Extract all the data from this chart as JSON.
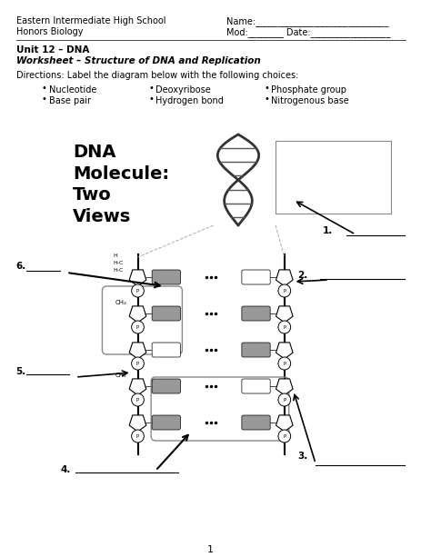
{
  "title_left1": "Eastern Intermediate High School",
  "title_left2": "Honors Biology",
  "name_line": "Name:______________________________",
  "mod_date_line": "Mod:________ Date:__________________",
  "unit_header": "Unit 12 – DNA",
  "worksheet_title": "Worksheet – Structure of DNA and Replication",
  "directions": "Directions: Label the diagram below with the following choices:",
  "bullets_col1": [
    "Nucleotide",
    "Base pair"
  ],
  "bullets_col2": [
    "Deoxyribose",
    "Hydrogen bond"
  ],
  "bullets_col3": [
    "Phosphate group",
    "Nitrogenous base"
  ],
  "dna_label": "DNA\nMolecule:\nTwo\nViews",
  "labels": [
    "1.",
    "2.",
    "3.",
    "4.",
    "5.",
    "6."
  ],
  "page_number": "1",
  "bg_color": "#ffffff",
  "text_color": "#000000",
  "line_color": "#000000"
}
